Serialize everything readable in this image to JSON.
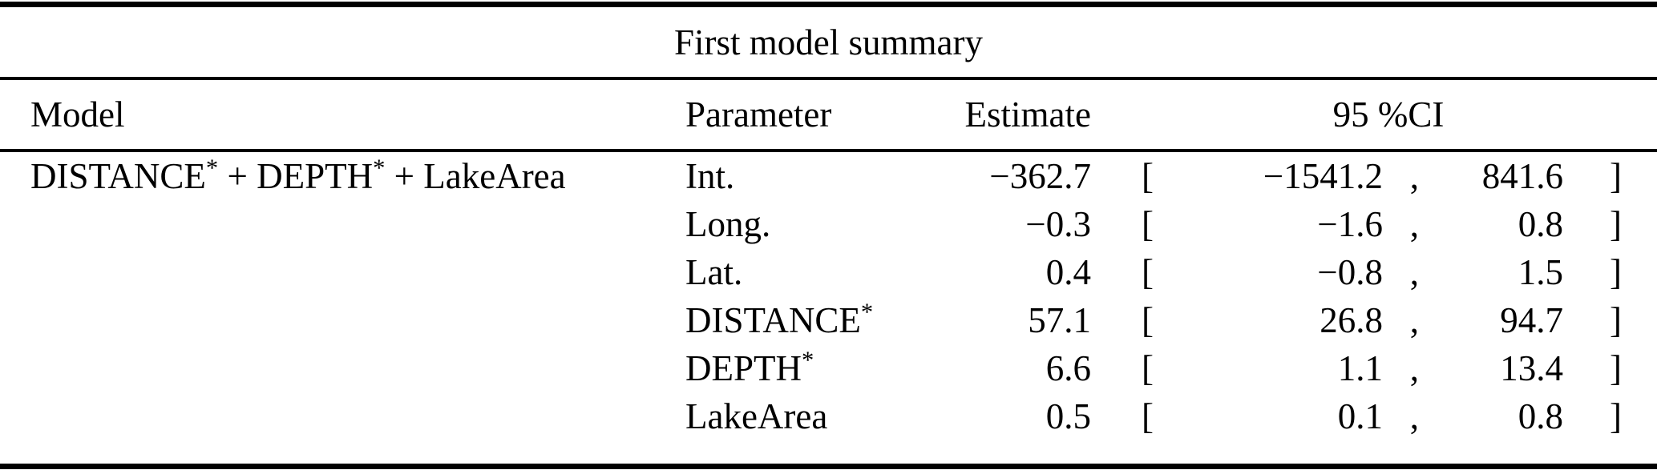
{
  "page": {
    "background": "#ffffff",
    "text_color": "#000000",
    "rule_color": "#000000"
  },
  "table": {
    "title": "First model summary",
    "headers": {
      "model": "Model",
      "parameter": "Parameter",
      "estimate": "Estimate",
      "ci": "95 %CI"
    },
    "model": {
      "parts": [
        {
          "text": "DISTANCE",
          "sup": "*"
        },
        {
          "text": " + DEPTH",
          "sup": "*"
        },
        {
          "text": " + LakeArea",
          "sup": ""
        }
      ]
    },
    "punct": {
      "open": "[",
      "comma": ",",
      "close": "]"
    },
    "rows": [
      {
        "parameter": {
          "text": "Int.",
          "sup": ""
        },
        "estimate": "−362.7",
        "ci_low": "−1541.2",
        "ci_high": "841.6"
      },
      {
        "parameter": {
          "text": "Long.",
          "sup": ""
        },
        "estimate": "−0.3",
        "ci_low": "−1.6",
        "ci_high": "0.8"
      },
      {
        "parameter": {
          "text": "Lat.",
          "sup": ""
        },
        "estimate": "0.4",
        "ci_low": "−0.8",
        "ci_high": "1.5"
      },
      {
        "parameter": {
          "text": "DISTANCE",
          "sup": "*"
        },
        "estimate": "57.1",
        "ci_low": "26.8",
        "ci_high": "94.7"
      },
      {
        "parameter": {
          "text": "DEPTH",
          "sup": "*"
        },
        "estimate": "6.6",
        "ci_low": "1.1",
        "ci_high": "13.4"
      },
      {
        "parameter": {
          "text": "LakeArea",
          "sup": ""
        },
        "estimate": "0.5",
        "ci_low": "0.1",
        "ci_high": "0.8"
      }
    ]
  }
}
